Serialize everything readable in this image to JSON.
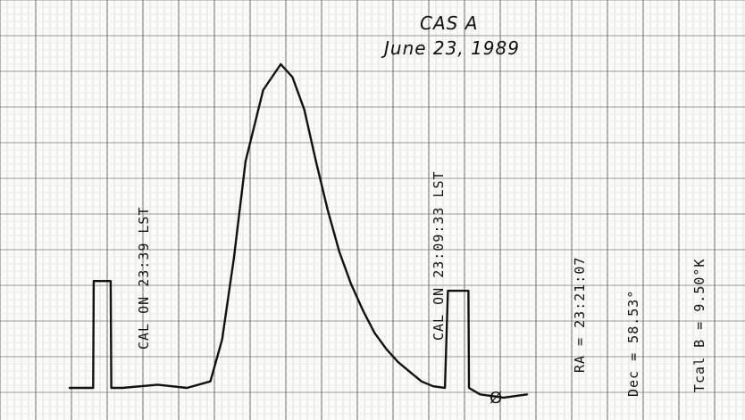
{
  "chart_data": {
    "type": "line",
    "title": "CAS  A",
    "subtitle": "June 23, 1989",
    "annotations": {
      "cal_on_1": "CAL ON  23:39 LST",
      "cal_on_2": "CAL ON 23:09:33 LST",
      "ra": "RA = 23:21:07",
      "dec": "Dec = 58.53°",
      "tcal": "Tcal B = 9.50°K",
      "end_mark": "Ø"
    },
    "series": [
      {
        "values_description_none": "",
        "x": [
          0,
          0.03,
          0.04,
          0.041,
          0.07,
          0.071,
          0.09,
          0.15,
          0.2,
          0.24,
          0.26,
          0.28,
          0.3,
          0.33,
          0.36,
          0.38,
          0.4,
          0.42,
          0.44,
          0.46,
          0.48,
          0.5,
          0.52,
          0.54,
          0.56,
          0.58,
          0.6,
          0.62,
          0.64,
          0.645,
          0.65,
          0.68,
          0.681,
          0.7,
          0.74,
          0.78
        ],
        "y": [
          0,
          0,
          0,
          0.33,
          0.33,
          0,
          0,
          0.01,
          0,
          0.02,
          0.15,
          0.4,
          0.7,
          0.92,
          1.0,
          0.96,
          0.86,
          0.7,
          0.55,
          0.42,
          0.32,
          0.24,
          0.17,
          0.12,
          0.08,
          0.05,
          0.02,
          0.005,
          0,
          0.3,
          0.3,
          0.3,
          0,
          -0.02,
          -0.03,
          -0.02
        ]
      }
    ],
    "grid": true
  }
}
